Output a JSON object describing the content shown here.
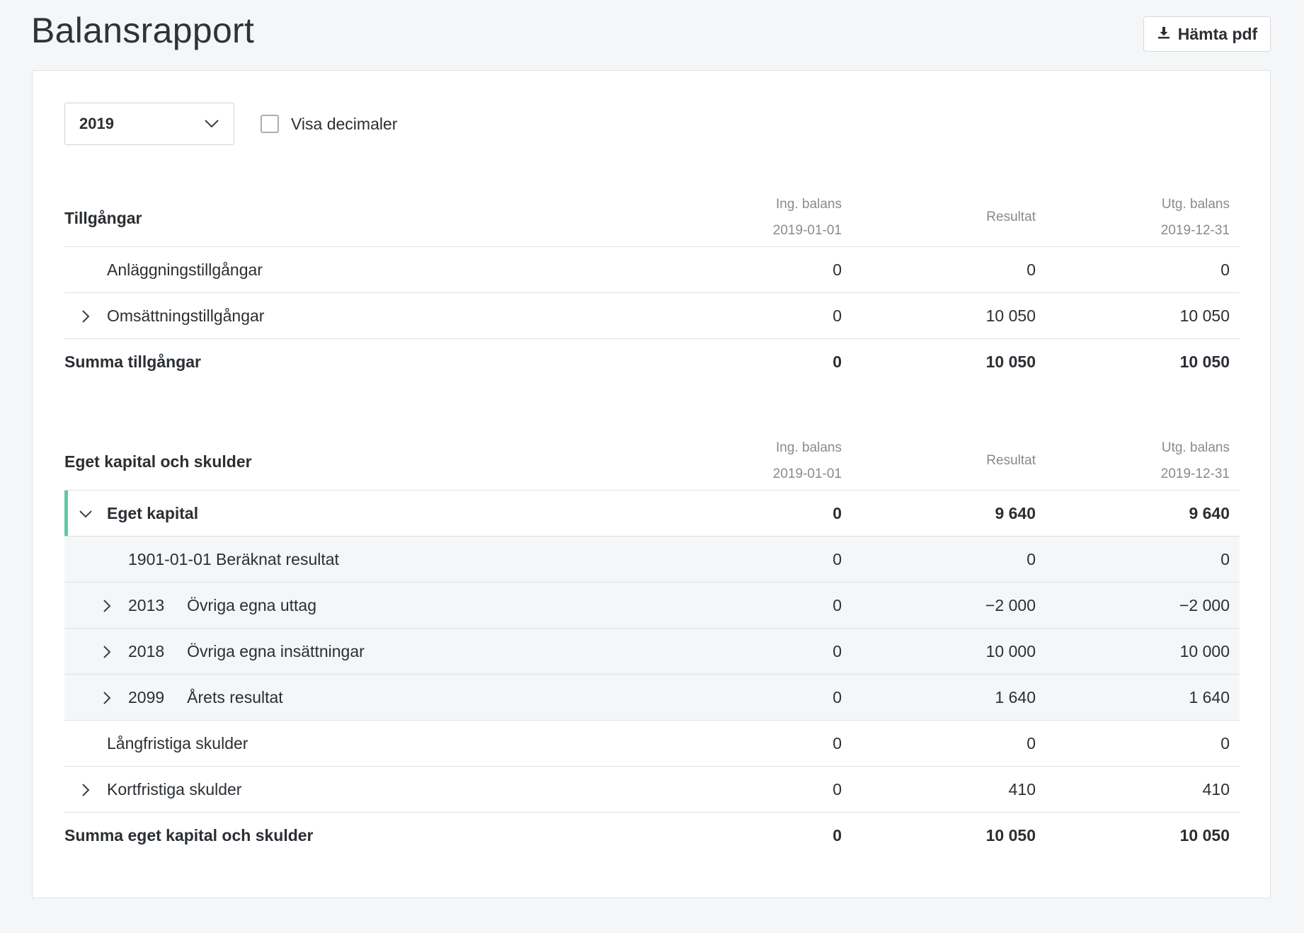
{
  "page": {
    "title": "Balansrapport"
  },
  "toolbar": {
    "pdf_label": "Hämta pdf",
    "pdf_icon": "download-icon"
  },
  "controls": {
    "year": "2019",
    "decimals_label": "Visa decimaler",
    "decimals_checked": false
  },
  "columns": {
    "ing_label": "Ing. balans",
    "ing_date": "2019-01-01",
    "res_label": "Resultat",
    "utg_label": "Utg. balans",
    "utg_date": "2019-12-31"
  },
  "assets": {
    "title": "Tillgångar",
    "rows": [
      {
        "label": "Anläggningstillgångar",
        "ing": "0",
        "res": "0",
        "utg": "0"
      },
      {
        "label": "Omsättningstillgångar",
        "ing": "0",
        "res": "10 050",
        "utg": "10 050"
      }
    ],
    "total": {
      "label": "Summa tillgångar",
      "ing": "0",
      "res": "10 050",
      "utg": "10 050"
    }
  },
  "equity": {
    "title": "Eget kapital och skulder",
    "group": {
      "label": "Eget kapital",
      "ing": "0",
      "res": "9 640",
      "utg": "9 640"
    },
    "sub_rows": [
      {
        "code": "",
        "label": "1901-01-01 Beräknat resultat",
        "ing": "0",
        "res": "0",
        "utg": "0"
      },
      {
        "code": "2013",
        "label": "Övriga egna uttag",
        "ing": "0",
        "res": "−2 000",
        "utg": "−2 000"
      },
      {
        "code": "2018",
        "label": "Övriga egna insättningar",
        "ing": "0",
        "res": "10 000",
        "utg": "10 000"
      },
      {
        "code": "2099",
        "label": "Årets resultat",
        "ing": "0",
        "res": "1 640",
        "utg": "1 640"
      }
    ],
    "rows": [
      {
        "label": "Långfristiga skulder",
        "ing": "0",
        "res": "0",
        "utg": "0"
      },
      {
        "label": "Kortfristiga skulder",
        "ing": "0",
        "res": "410",
        "utg": "410"
      }
    ],
    "total": {
      "label": "Summa eget kapital och skulder",
      "ing": "0",
      "res": "10 050",
      "utg": "10 050"
    }
  },
  "colors": {
    "accent": "#5ec9a6",
    "subrow_bg": "#f5f6f7",
    "muted_text": "#868b90"
  }
}
